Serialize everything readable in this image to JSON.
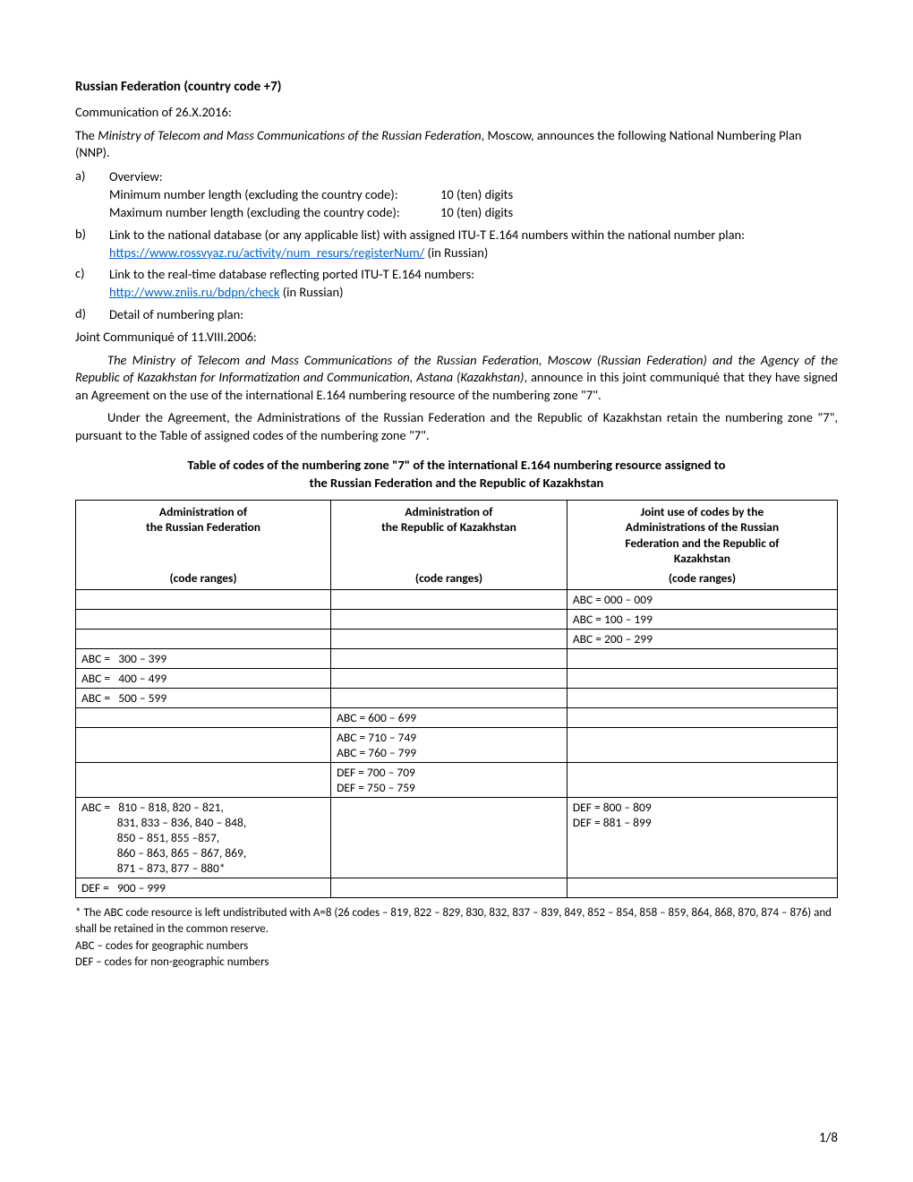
{
  "title": "Russian Federation (country code +7)",
  "comm_date": "Communication of 26.X.2016:",
  "intro_pre": "The ",
  "intro_italic": "Ministry of Telecom and Mass Communications of the Russian Federation",
  "intro_post": ", Moscow, announces the following National Numbering Plan (NNP).",
  "a": {
    "label": "a)",
    "heading": "Overview:",
    "min_label": "Minimum number length (excluding the country code):",
    "min_val": "10 (ten) digits",
    "max_label": "Maximum number length (excluding the country code):",
    "max_val": "10 (ten) digits"
  },
  "b": {
    "label": "b)",
    "text": "Link to the national database (or any applicable list) with assigned ITU-T E.164 numbers within the national number plan:",
    "link": "https://www.rossvyaz.ru/activity/num_resurs/registerNum/",
    "link_suffix": " (in Russian)"
  },
  "c": {
    "label": "c)",
    "text": "Link to the real-time database reflecting ported ITU-T E.164 numbers:",
    "link": "http://www.zniis.ru/bdpn/check",
    "link_suffix": " (in Russian)"
  },
  "d": {
    "label": "d)",
    "text": "Detail of numbering plan:"
  },
  "joint_date": "Joint Communiqué of 11.VIII.2006:",
  "joint_p1_italic": "The Ministry of Telecom and Mass Communications of the Russian Federation, Moscow (Russian Federation) and the Agency of the Republic of Kazakhstan for Informatization and Communication, Astana (Kazakhstan)",
  "joint_p1_rest": ", announce in this joint communiqué that they have signed an Agreement on the use of the international E.164 numbering resource of the numbering zone \"7\".",
  "joint_p2": "Under the Agreement, the Administrations of the Russian Federation and the Republic of Kazakhstan retain the numbering zone \"7\", pursuant to the Table of assigned codes of the numbering zone \"7\".",
  "table_title_l1": "Table of codes of the numbering zone \"7\" of the international E.164 numbering resource assigned to",
  "table_title_l2": "the Russian Federation and the Republic of Kazakhstan",
  "table": {
    "col_widths": [
      "33.5%",
      "31%",
      "35.5%"
    ],
    "head_top": [
      "Administration of\nthe Russian Federation",
      "Administration of\nthe Republic of Kazakhstan",
      "Joint use of codes by the\nAdministrations of the Russian\nFederation and the Republic of\nKazakhstan"
    ],
    "head_bot": [
      "(code ranges)",
      "(code ranges)",
      "(code ranges)"
    ],
    "rows": [
      [
        "",
        "",
        "ABC = 000 – 009"
      ],
      [
        "",
        "",
        "ABC = 100 – 199"
      ],
      [
        "",
        "",
        "ABC = 200 – 299"
      ],
      [
        "ABC =   300 – 399",
        "",
        ""
      ],
      [
        "ABC =   400 – 499",
        "",
        ""
      ],
      [
        "ABC =   500 – 599",
        "",
        ""
      ],
      [
        "",
        "ABC = 600 – 699",
        ""
      ],
      [
        "",
        "ABC = 710 – 749\nABC = 760 – 799",
        ""
      ],
      [
        "",
        "DEF = 700 – 709\nDEF = 750 – 759",
        ""
      ],
      [
        "ABC =   810 – 818, 820 – 821,\n             831, 833 – 836, 840 – 848,\n             850 – 851, 855 –857,\n             860 – 863, 865 – 867, 869,\n             871 – 873, 877 – 880*",
        "",
        "DEF = 800 – 809\nDEF = 881 – 899"
      ],
      [
        "DEF =   900 – 999",
        "",
        ""
      ]
    ]
  },
  "footnote_star": "*  The ABC code resource is left undistributed with A=8 (26 codes – 819, 822 – 829, 830, 832, 837 – 839, 849, 852 – 854, 858 – 859, 864, 868, 870, 874 – 876) and shall be retained in the common reserve.",
  "footnote_abc": "ABC – codes for geographic numbers",
  "footnote_def": "DEF – codes for non-geographic numbers",
  "page_num": "1/8"
}
